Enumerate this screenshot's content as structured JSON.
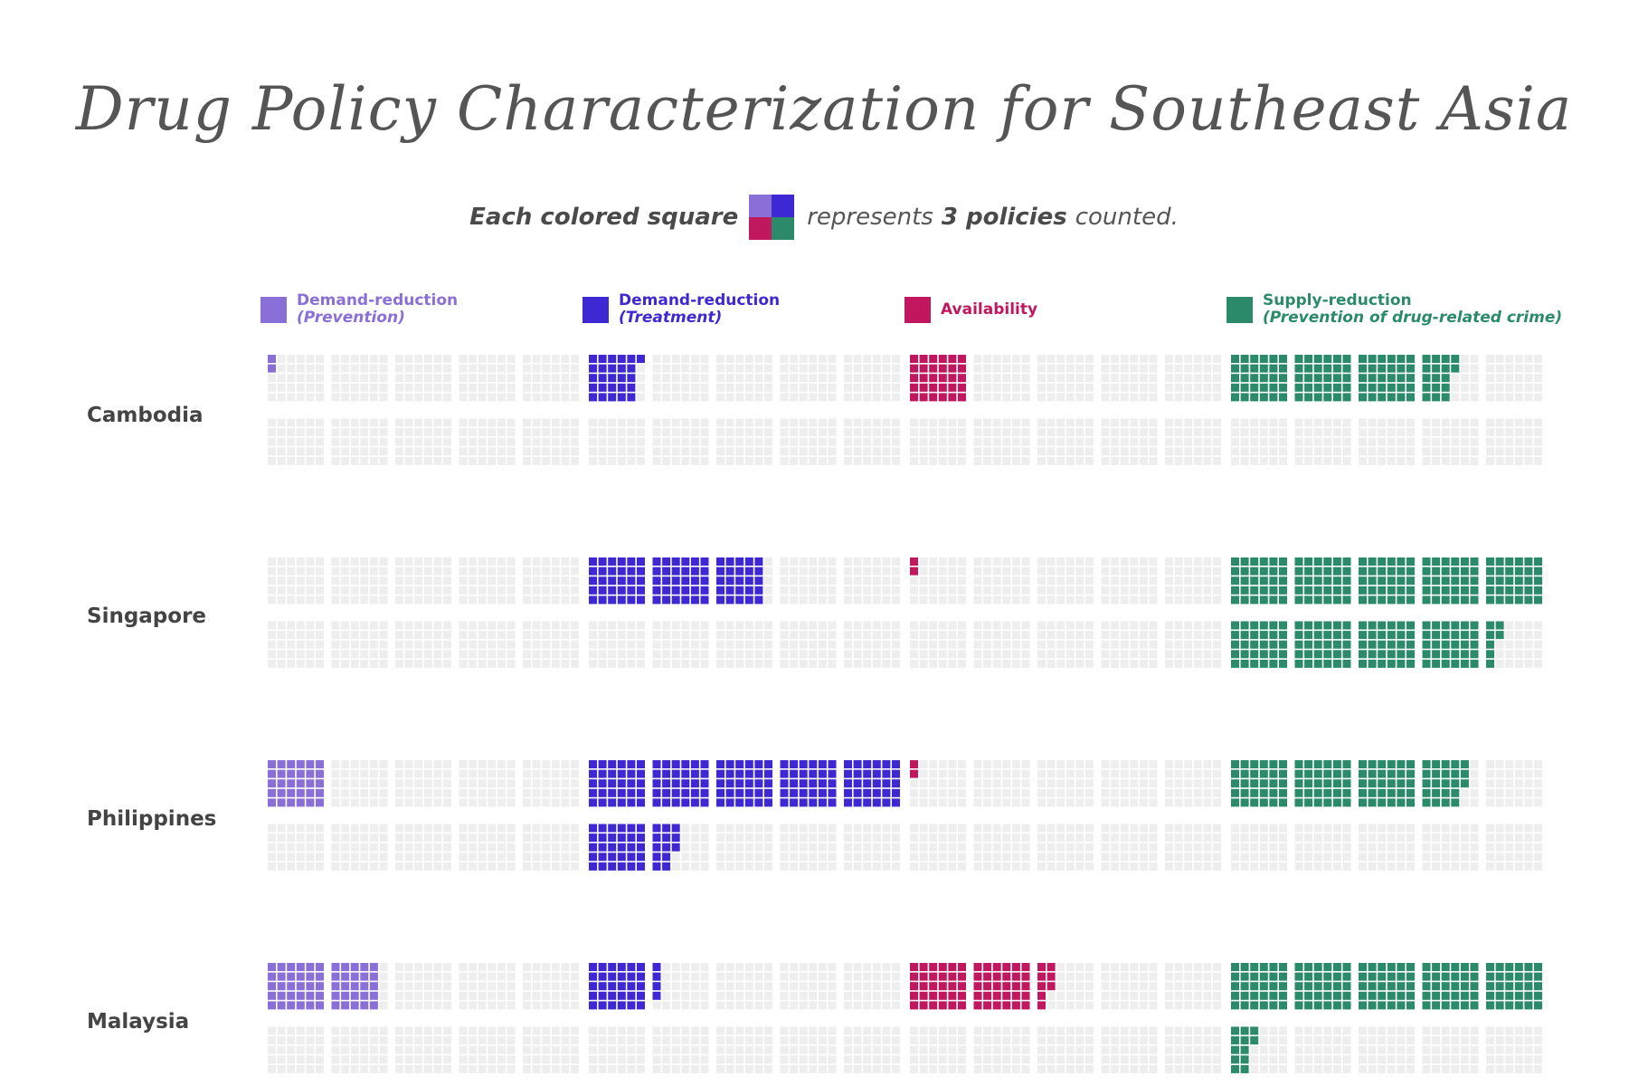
{
  "chart_data": {
    "type": "waffle",
    "title": "Drug Policy Characterization for Southeast Asia",
    "unit_note": {
      "lead": "Each colored square",
      "mid": "represents",
      "count": "3 policies",
      "tail": "counted."
    },
    "policies_per_square": 3,
    "blocks_per_category": 10,
    "squares_per_block": 30,
    "categories": [
      {
        "key": "prevention",
        "name": "Demand-reduction",
        "subname": "(Prevention)",
        "color": "#8a6fd8"
      },
      {
        "key": "treatment",
        "name": "Demand-reduction",
        "subname": "(Treatment)",
        "color": "#3d28d3"
      },
      {
        "key": "availability",
        "name": "Availability",
        "subname": "",
        "color": "#c0175e"
      },
      {
        "key": "supply",
        "name": "Supply-reduction",
        "subname": "(Prevention of drug-related crime)",
        "color": "#2a8a6a"
      }
    ],
    "countries": [
      {
        "name": "Cambodia",
        "squares": [
          2,
          26,
          30,
          107
        ]
      },
      {
        "name": "Singapore",
        "squares": [
          0,
          85,
          2,
          277
        ]
      },
      {
        "name": "Philippines",
        "squares": [
          30,
          193,
          2,
          113
        ]
      },
      {
        "name": "Malaysia",
        "squares": [
          55,
          34,
          68,
          162
        ]
      }
    ],
    "colors": {
      "empty": "#eeeeee"
    }
  }
}
